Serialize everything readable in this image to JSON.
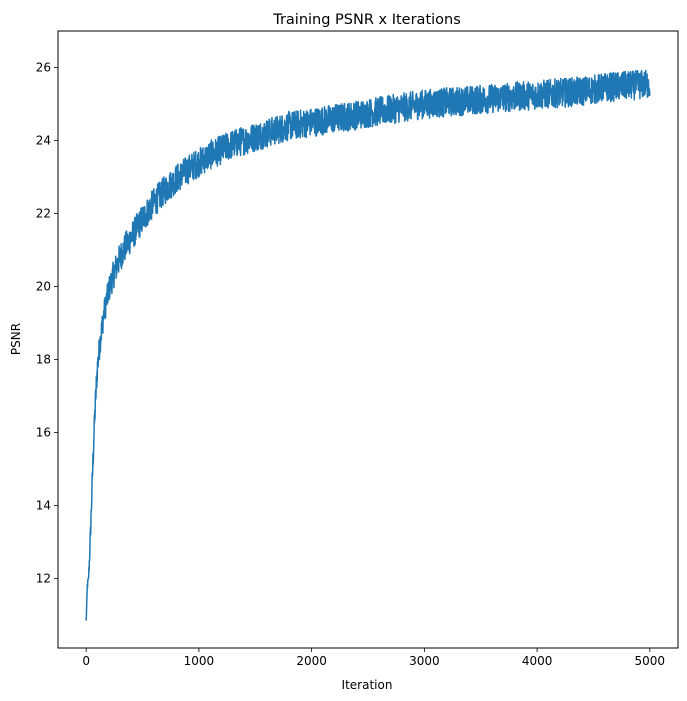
{
  "chart_data": {
    "type": "line",
    "title": "Training PSNR x Iterations",
    "xlabel": "Iteration",
    "ylabel": "PSNR",
    "xlim": [
      -250,
      5250
    ],
    "ylim": [
      10.1,
      27.0
    ],
    "xticks": [
      0,
      1000,
      2000,
      3000,
      4000,
      5000
    ],
    "yticks": [
      12,
      14,
      16,
      18,
      20,
      22,
      24,
      26
    ],
    "grid": false,
    "line_color": "#1f77b4",
    "series": [
      {
        "x": [
          0,
          10,
          20,
          30,
          40,
          50,
          60,
          70,
          80,
          90,
          100,
          120,
          140,
          160,
          180,
          200,
          250,
          300,
          350,
          400,
          450,
          500,
          600,
          700,
          800,
          900,
          1000,
          1100,
          1200,
          1300,
          1400,
          1500,
          1600,
          1700,
          1800,
          1900,
          2000,
          2100,
          2200,
          2300,
          2400,
          2500,
          2600,
          2700,
          2800,
          2900,
          3000,
          3200,
          3400,
          3600,
          3800,
          4000,
          4200,
          4400,
          4600,
          4800,
          5000
        ],
        "y": [
          10.85,
          11.8,
          11.95,
          12.6,
          13.4,
          14.3,
          15.2,
          16.0,
          16.7,
          17.3,
          17.8,
          18.4,
          18.9,
          19.3,
          19.6,
          19.9,
          20.4,
          20.8,
          21.1,
          21.35,
          21.6,
          21.85,
          22.3,
          22.65,
          22.95,
          23.2,
          23.4,
          23.6,
          23.75,
          23.9,
          24.0,
          24.1,
          24.2,
          24.3,
          24.4,
          24.45,
          24.5,
          24.55,
          24.6,
          24.65,
          24.7,
          24.75,
          24.8,
          24.85,
          24.9,
          24.95,
          25.0,
          25.05,
          25.1,
          25.15,
          25.2,
          25.25,
          25.3,
          25.35,
          25.45,
          25.5,
          25.55
        ],
        "noise_amplitude": [
          0,
          0.1,
          0.15,
          0.2,
          0.25,
          0.3,
          0.35,
          0.35,
          0.35,
          0.35,
          0.35,
          0.35,
          0.35,
          0.35,
          0.35,
          0.35,
          0.4,
          0.4,
          0.4,
          0.4,
          0.4,
          0.4,
          0.4,
          0.4,
          0.4,
          0.4,
          0.4,
          0.4,
          0.4,
          0.4,
          0.4,
          0.4,
          0.4,
          0.4,
          0.4,
          0.4,
          0.4,
          0.4,
          0.4,
          0.4,
          0.4,
          0.4,
          0.4,
          0.4,
          0.4,
          0.4,
          0.4,
          0.4,
          0.4,
          0.4,
          0.4,
          0.4,
          0.4,
          0.4,
          0.4,
          0.4,
          0.4
        ]
      }
    ]
  }
}
